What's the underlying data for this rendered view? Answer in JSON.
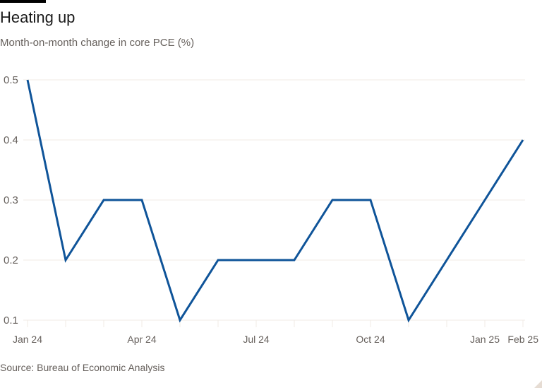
{
  "header": {
    "title": "Heating up",
    "subtitle": "Month-on-month change in core PCE (%)"
  },
  "footer": {
    "source": "Source: Bureau of Economic Analysis"
  },
  "colors": {
    "line": "#0f5499",
    "grid": "#f0ebe6",
    "text": "#66605c"
  },
  "chart_data": {
    "type": "line",
    "title": "Heating up",
    "subtitle": "Month-on-month change in core PCE (%)",
    "xlabel": "",
    "ylabel": "",
    "ylim": [
      0.1,
      0.5
    ],
    "yticks": [
      0.1,
      0.2,
      0.3,
      0.4,
      0.5
    ],
    "x": [
      "Jan 24",
      "Feb 24",
      "Mar 24",
      "Apr 24",
      "May 24",
      "Jun 24",
      "Jul 24",
      "Aug 24",
      "Sep 24",
      "Oct 24",
      "Nov 24",
      "Dec 24",
      "Jan 25",
      "Feb 25"
    ],
    "xtick_labels": [
      "Jan 24",
      "Apr 24",
      "Jul 24",
      "Oct 24",
      "Jan 25",
      "Feb 25"
    ],
    "series": [
      {
        "name": "Core PCE m/m change",
        "values": [
          0.5,
          0.2,
          0.3,
          0.3,
          0.1,
          0.2,
          0.2,
          0.2,
          0.3,
          0.3,
          0.1,
          0.2,
          0.3,
          0.4
        ]
      }
    ],
    "grid": true,
    "legend": "none",
    "source": "Source: Bureau of Economic Analysis"
  }
}
